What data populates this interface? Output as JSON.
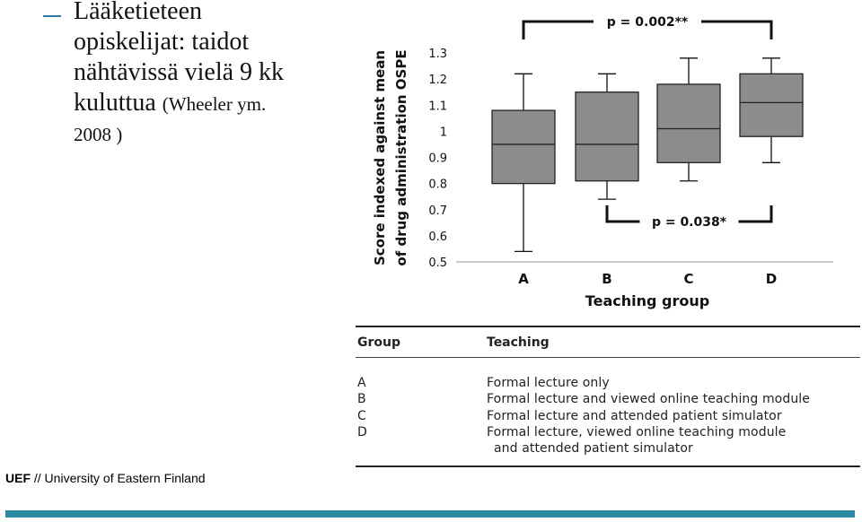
{
  "bullet": {
    "line1": "Lääketieteen",
    "line2": "opiskelijat: taidot",
    "line3": "nähtävissä vielä 9 kk",
    "line4_main": "kuluttua",
    "line4_small": "(Wheeler ym.",
    "line5": "2008 )"
  },
  "footer": {
    "org_bold": "UEF",
    "org_rest": " // University of Eastern Finland"
  },
  "colors": {
    "box_fill": "#8c8c8c",
    "accent": "#2a8aa0"
  },
  "chart_data": {
    "type": "box",
    "ylabel_line1": "Score indexed against mean",
    "ylabel_line2": "of drug administration OSPE",
    "xlabel": "Teaching group",
    "ylim": [
      0.5,
      1.3
    ],
    "yticks": [
      "0.5",
      "0.6",
      "0.7",
      "0.8",
      "0.9",
      "1",
      "1.1",
      "1.2",
      "1.3"
    ],
    "categories": [
      "A",
      "B",
      "C",
      "D"
    ],
    "boxes": [
      {
        "group": "A",
        "min": 0.54,
        "q1": 0.8,
        "median": 0.95,
        "q3": 1.08,
        "max": 1.22
      },
      {
        "group": "B",
        "min": 0.74,
        "q1": 0.81,
        "median": 0.95,
        "q3": 1.15,
        "max": 1.22
      },
      {
        "group": "C",
        "min": 0.81,
        "q1": 0.88,
        "median": 1.01,
        "q3": 1.18,
        "max": 1.28
      },
      {
        "group": "D",
        "min": 0.88,
        "q1": 0.98,
        "median": 1.11,
        "q3": 1.22,
        "max": 1.28
      }
    ],
    "annotations": [
      {
        "from": "A",
        "to": "D",
        "label": "p = 0.002**",
        "position": "top"
      },
      {
        "from": "B",
        "to": "D",
        "label": "p = 0.038*",
        "position": "bottom"
      }
    ]
  },
  "table": {
    "header_group": "Group",
    "header_teaching": "Teaching",
    "rows": [
      {
        "group": "A",
        "teaching": "Formal lecture only"
      },
      {
        "group": "B",
        "teaching": "Formal lecture and viewed online teaching module"
      },
      {
        "group": "C",
        "teaching": "Formal lecture and attended patient simulator"
      },
      {
        "group": "D",
        "teaching": "Formal lecture, viewed online teaching module"
      },
      {
        "group": "",
        "teaching": "and attended patient simulator"
      }
    ]
  }
}
